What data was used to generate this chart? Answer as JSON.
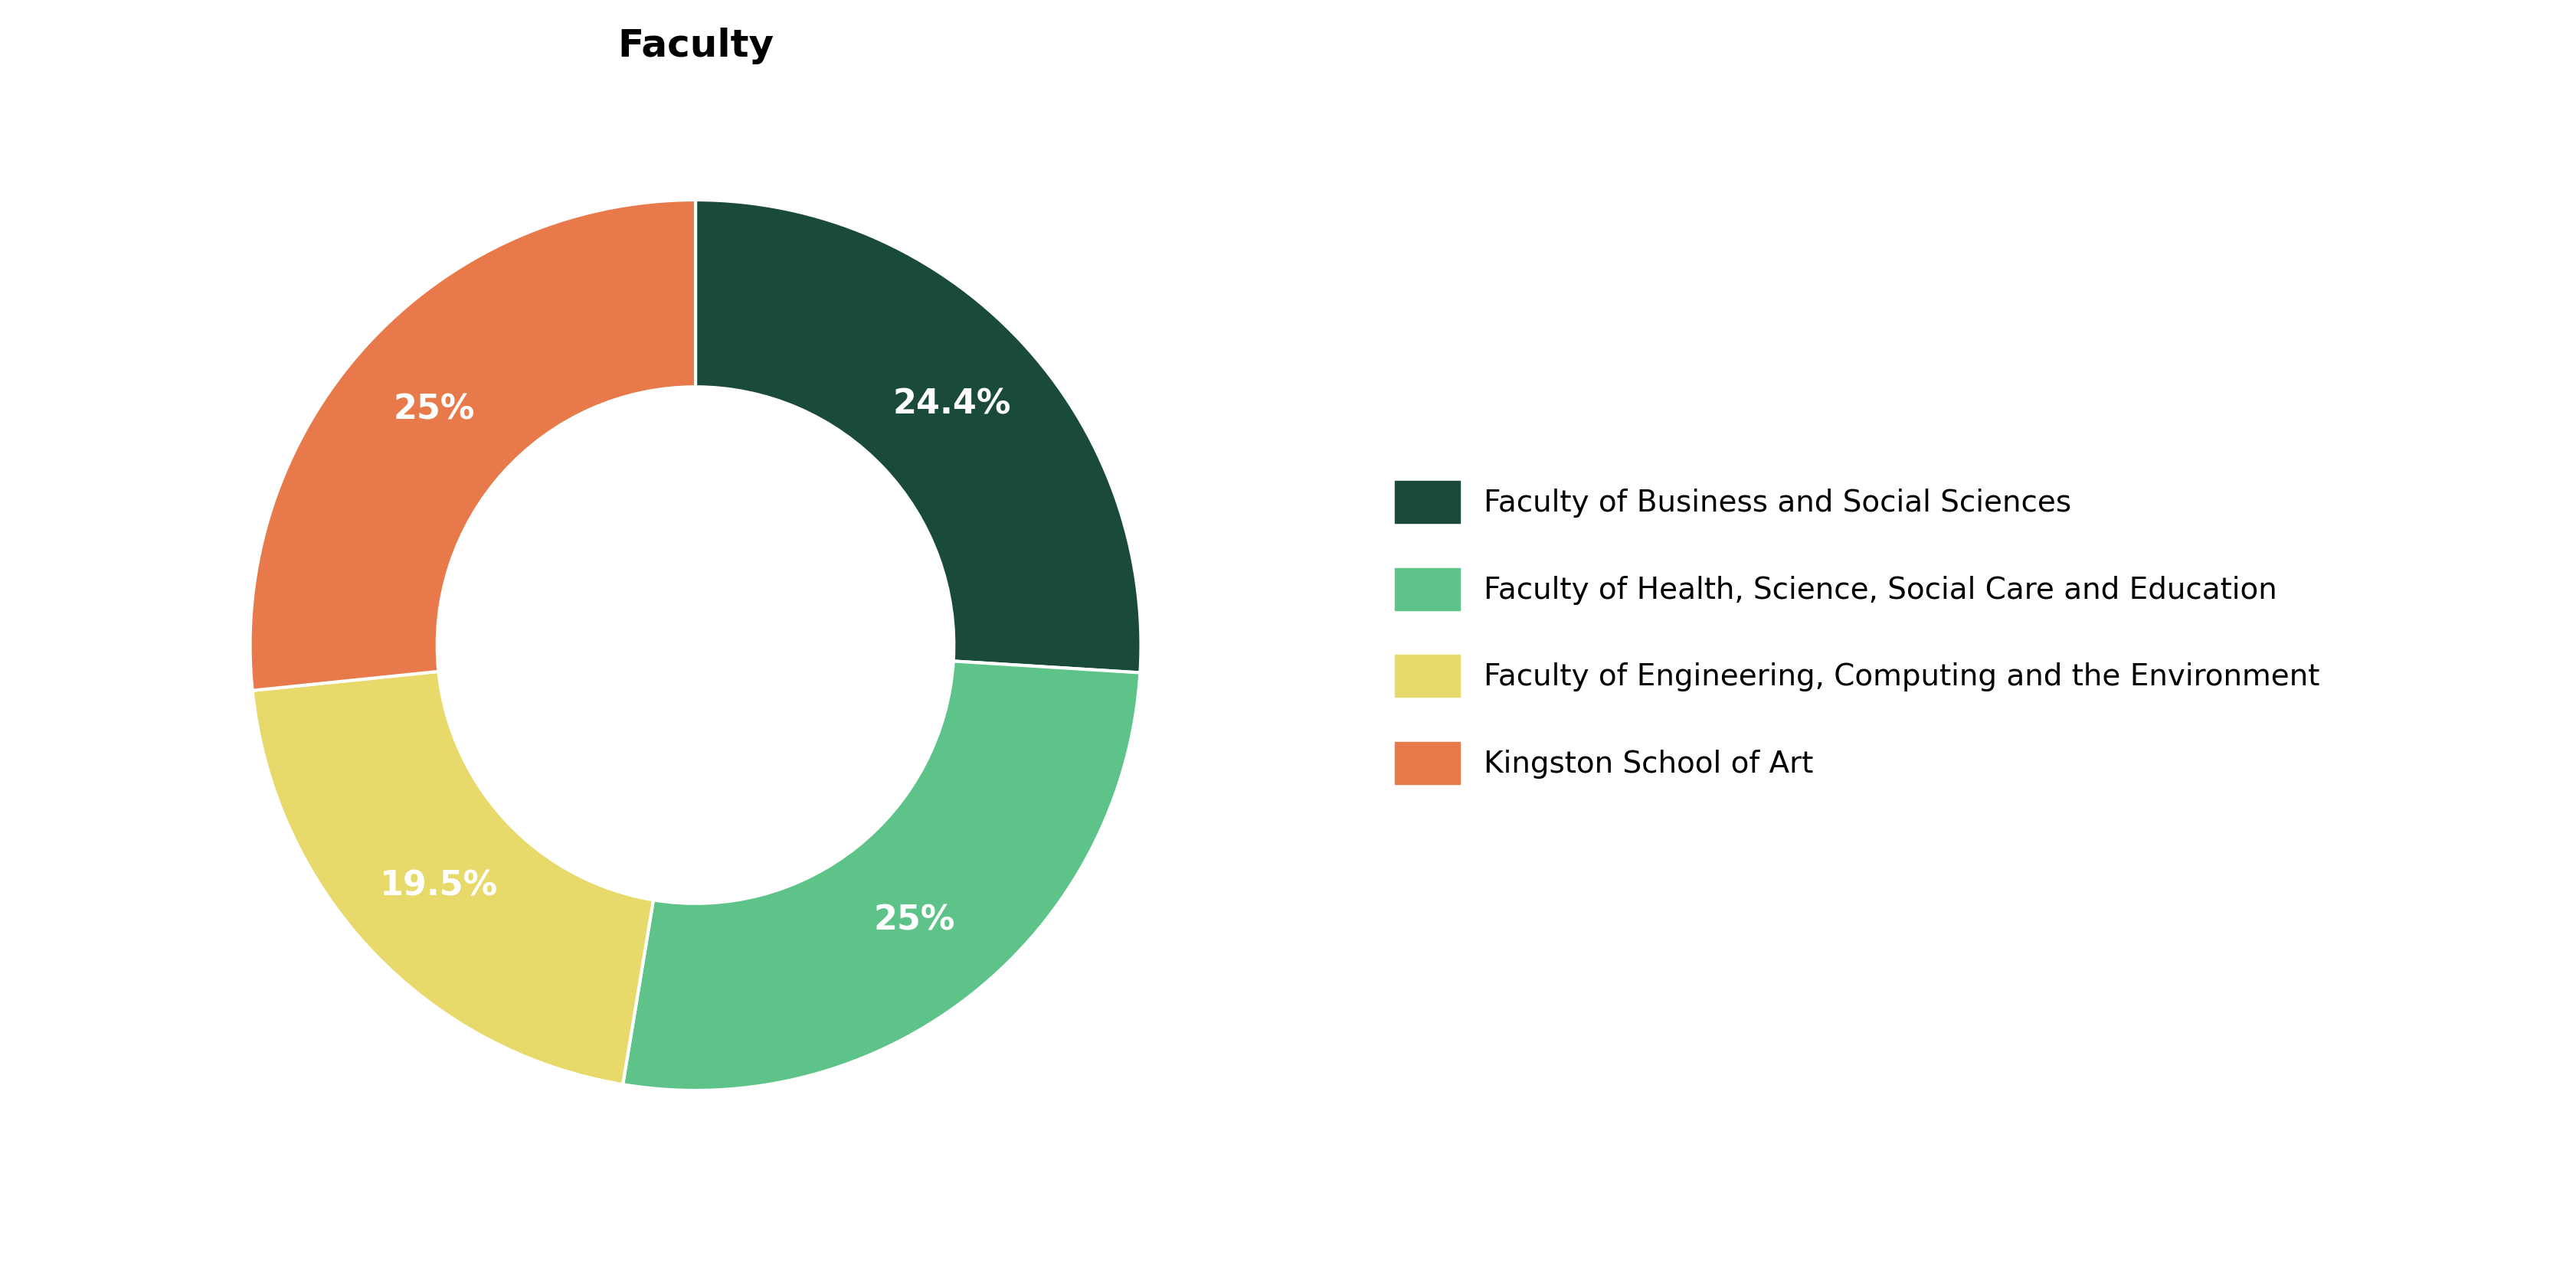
{
  "title": "Faculty",
  "slices": [
    {
      "label": "Faculty of Business and Social Sciences",
      "value": 24.4,
      "color": "#1a4a3a",
      "text_label": "24.4%"
    },
    {
      "label": "Faculty of Health, Science, Social Care and Education",
      "value": 25.0,
      "color": "#5dc389",
      "text_label": "25%"
    },
    {
      "label": "Faculty of Engineering, Computing and the Environment",
      "value": 19.5,
      "color": "#e8d96b",
      "text_label": "19.5%"
    },
    {
      "label": "Kingston School of Art",
      "value": 25.0,
      "color": "#e8794a",
      "text_label": "25%"
    }
  ],
  "background_color": "#ffffff",
  "title_fontsize": 36,
  "label_fontsize": 32,
  "legend_fontsize": 28,
  "donut_width": 0.42,
  "start_angle": 90
}
